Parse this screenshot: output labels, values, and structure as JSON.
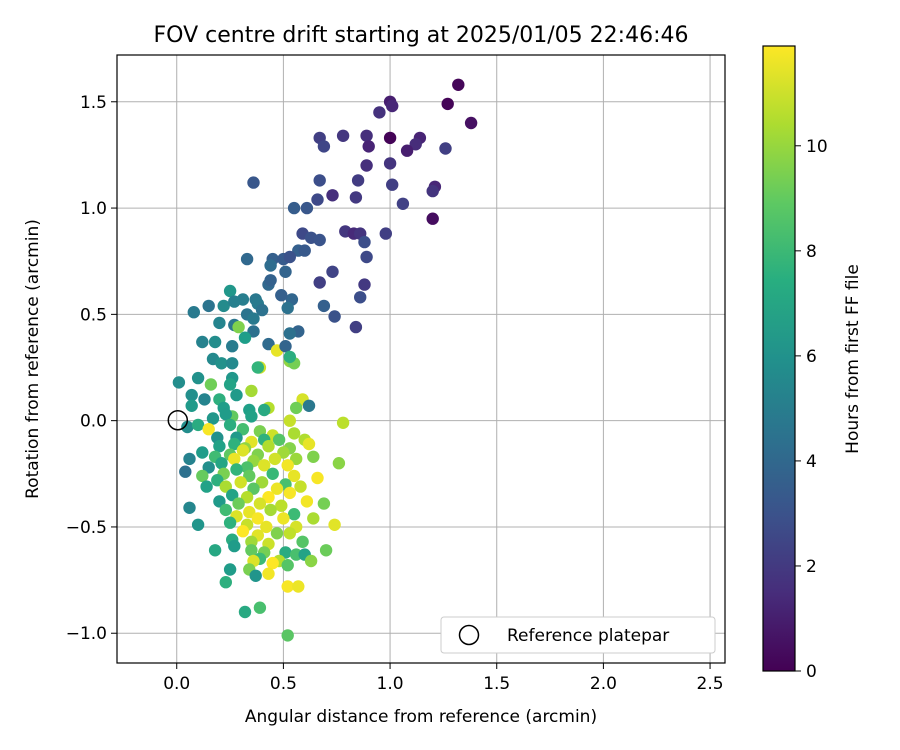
{
  "chart_data": {
    "type": "scatter",
    "title": "FOV centre drift starting at 2025/01/05 22:46:46",
    "xlabel": "Angular distance from reference (arcmin)",
    "ylabel": "Rotation from reference (arcmin)",
    "xlim": [
      -0.28,
      2.57
    ],
    "ylim": [
      -1.14,
      1.72
    ],
    "xticks": [
      "0.0",
      "0.5",
      "1.0",
      "1.5",
      "2.0",
      "2.5"
    ],
    "yticks": [
      "−1.0",
      "−0.5",
      "0.0",
      "0.5",
      "1.0",
      "1.5"
    ],
    "grid": true,
    "colorbar": {
      "label": "Hours from first FF file",
      "colormap": "viridis",
      "range": [
        0,
        11.9
      ],
      "ticks": [
        "0",
        "2",
        "4",
        "6",
        "8",
        "10"
      ]
    },
    "reference_point": {
      "x": 0.0,
      "y": 0.0
    },
    "legend": {
      "placement": "lower right",
      "entries": [
        "Reference platepar"
      ]
    },
    "points": [
      {
        "x": 1.32,
        "y": 1.58,
        "t": 0.2
      },
      {
        "x": 1.27,
        "y": 1.49,
        "t": 0.1
      },
      {
        "x": 1.38,
        "y": 1.4,
        "t": 0.5
      },
      {
        "x": 1.0,
        "y": 1.5,
        "t": 1.0
      },
      {
        "x": 1.01,
        "y": 1.48,
        "t": 1.3
      },
      {
        "x": 0.95,
        "y": 1.45,
        "t": 1.7
      },
      {
        "x": 0.78,
        "y": 1.34,
        "t": 1.9
      },
      {
        "x": 0.67,
        "y": 1.33,
        "t": 2.2
      },
      {
        "x": 0.89,
        "y": 1.34,
        "t": 1.6
      },
      {
        "x": 1.0,
        "y": 1.33,
        "t": 0.1
      },
      {
        "x": 1.14,
        "y": 1.33,
        "t": 1.2
      },
      {
        "x": 1.26,
        "y": 1.28,
        "t": 2.2
      },
      {
        "x": 0.9,
        "y": 1.29,
        "t": 1.2
      },
      {
        "x": 0.69,
        "y": 1.29,
        "t": 2.5
      },
      {
        "x": 1.12,
        "y": 1.3,
        "t": 1.5
      },
      {
        "x": 1.08,
        "y": 1.27,
        "t": 1.0
      },
      {
        "x": 1.0,
        "y": 1.21,
        "t": 1.8
      },
      {
        "x": 0.89,
        "y": 1.2,
        "t": 1.6
      },
      {
        "x": 0.36,
        "y": 1.12,
        "t": 3.2
      },
      {
        "x": 0.67,
        "y": 1.13,
        "t": 2.8
      },
      {
        "x": 0.85,
        "y": 1.13,
        "t": 2.1
      },
      {
        "x": 1.21,
        "y": 1.1,
        "t": 1.3
      },
      {
        "x": 1.2,
        "y": 1.08,
        "t": 1.8
      },
      {
        "x": 1.01,
        "y": 1.11,
        "t": 2.2
      },
      {
        "x": 0.73,
        "y": 1.06,
        "t": 1.6
      },
      {
        "x": 0.84,
        "y": 1.05,
        "t": 2.0
      },
      {
        "x": 0.66,
        "y": 1.04,
        "t": 2.6
      },
      {
        "x": 1.06,
        "y": 1.02,
        "t": 2.3
      },
      {
        "x": 0.55,
        "y": 1.0,
        "t": 3.5
      },
      {
        "x": 0.61,
        "y": 1.0,
        "t": 3.2
      },
      {
        "x": 1.2,
        "y": 0.95,
        "t": 0.4
      },
      {
        "x": 0.79,
        "y": 0.89,
        "t": 1.9
      },
      {
        "x": 0.83,
        "y": 0.88,
        "t": 1.4
      },
      {
        "x": 0.86,
        "y": 0.88,
        "t": 1.8
      },
      {
        "x": 0.98,
        "y": 0.88,
        "t": 2.2
      },
      {
        "x": 0.59,
        "y": 0.88,
        "t": 2.6
      },
      {
        "x": 0.63,
        "y": 0.86,
        "t": 3.0
      },
      {
        "x": 0.67,
        "y": 0.85,
        "t": 3.1
      },
      {
        "x": 0.88,
        "y": 0.84,
        "t": 2.8
      },
      {
        "x": 0.57,
        "y": 0.8,
        "t": 3.6
      },
      {
        "x": 0.6,
        "y": 0.8,
        "t": 3.3
      },
      {
        "x": 0.33,
        "y": 0.76,
        "t": 4.0
      },
      {
        "x": 0.45,
        "y": 0.76,
        "t": 3.6
      },
      {
        "x": 0.5,
        "y": 0.76,
        "t": 3.4
      },
      {
        "x": 0.53,
        "y": 0.77,
        "t": 3.0
      },
      {
        "x": 0.89,
        "y": 0.77,
        "t": 2.6
      },
      {
        "x": 0.44,
        "y": 0.73,
        "t": 4.2
      },
      {
        "x": 0.51,
        "y": 0.7,
        "t": 3.8
      },
      {
        "x": 0.73,
        "y": 0.7,
        "t": 2.4
      },
      {
        "x": 0.67,
        "y": 0.65,
        "t": 2.2
      },
      {
        "x": 0.88,
        "y": 0.64,
        "t": 2.0
      },
      {
        "x": 0.43,
        "y": 0.64,
        "t": 4.0
      },
      {
        "x": 0.44,
        "y": 0.66,
        "t": 3.7
      },
      {
        "x": 0.25,
        "y": 0.61,
        "t": 6.3
      },
      {
        "x": 0.31,
        "y": 0.57,
        "t": 5.1
      },
      {
        "x": 0.37,
        "y": 0.57,
        "t": 4.8
      },
      {
        "x": 0.38,
        "y": 0.55,
        "t": 4.9
      },
      {
        "x": 0.54,
        "y": 0.57,
        "t": 3.9
      },
      {
        "x": 0.49,
        "y": 0.59,
        "t": 3.6
      },
      {
        "x": 0.86,
        "y": 0.58,
        "t": 2.8
      },
      {
        "x": 0.15,
        "y": 0.54,
        "t": 4.6
      },
      {
        "x": 0.22,
        "y": 0.54,
        "t": 5.7
      },
      {
        "x": 0.27,
        "y": 0.56,
        "t": 5.2
      },
      {
        "x": 0.4,
        "y": 0.52,
        "t": 4.5
      },
      {
        "x": 0.52,
        "y": 0.53,
        "t": 4.5
      },
      {
        "x": 0.69,
        "y": 0.54,
        "t": 3.6
      },
      {
        "x": 0.08,
        "y": 0.51,
        "t": 4.9
      },
      {
        "x": 0.33,
        "y": 0.5,
        "t": 4.6
      },
      {
        "x": 0.74,
        "y": 0.49,
        "t": 3.0
      },
      {
        "x": 0.2,
        "y": 0.46,
        "t": 5.4
      },
      {
        "x": 0.36,
        "y": 0.48,
        "t": 4.9
      },
      {
        "x": 0.27,
        "y": 0.45,
        "t": 4.7
      },
      {
        "x": 0.29,
        "y": 0.44,
        "t": 9.6
      },
      {
        "x": 0.57,
        "y": 0.42,
        "t": 3.8
      },
      {
        "x": 0.53,
        "y": 0.41,
        "t": 4.4
      },
      {
        "x": 0.84,
        "y": 0.44,
        "t": 2.2
      },
      {
        "x": 0.36,
        "y": 0.42,
        "t": 4.4
      },
      {
        "x": 0.26,
        "y": 0.35,
        "t": 5.0
      },
      {
        "x": 0.12,
        "y": 0.37,
        "t": 5.3
      },
      {
        "x": 0.18,
        "y": 0.37,
        "t": 5.8
      },
      {
        "x": 0.32,
        "y": 0.39,
        "t": 6.6
      },
      {
        "x": 0.43,
        "y": 0.36,
        "t": 4.1
      },
      {
        "x": 0.47,
        "y": 0.33,
        "t": 11.5
      },
      {
        "x": 0.51,
        "y": 0.35,
        "t": 3.8
      },
      {
        "x": 0.17,
        "y": 0.29,
        "t": 5.6
      },
      {
        "x": 0.21,
        "y": 0.27,
        "t": 6.0
      },
      {
        "x": 0.26,
        "y": 0.27,
        "t": 5.6
      },
      {
        "x": 0.53,
        "y": 0.28,
        "t": 9.9
      },
      {
        "x": 0.55,
        "y": 0.27,
        "t": 9.4
      },
      {
        "x": 0.53,
        "y": 0.3,
        "t": 7.4
      },
      {
        "x": 0.39,
        "y": 0.25,
        "t": 11.0
      },
      {
        "x": 0.38,
        "y": 0.25,
        "t": 7.8
      },
      {
        "x": 0.1,
        "y": 0.2,
        "t": 6.0
      },
      {
        "x": 0.01,
        "y": 0.18,
        "t": 5.8
      },
      {
        "x": 0.16,
        "y": 0.17,
        "t": 9.3
      },
      {
        "x": 0.26,
        "y": 0.2,
        "t": 6.3
      },
      {
        "x": 0.25,
        "y": 0.17,
        "t": 6.9
      },
      {
        "x": 0.35,
        "y": 0.14,
        "t": 10.3
      },
      {
        "x": 0.07,
        "y": 0.12,
        "t": 5.9
      },
      {
        "x": 0.13,
        "y": 0.1,
        "t": 5.4
      },
      {
        "x": 0.2,
        "y": 0.1,
        "t": 7.5
      },
      {
        "x": 0.28,
        "y": 0.12,
        "t": 6.4
      },
      {
        "x": 0.59,
        "y": 0.1,
        "t": 11.2
      },
      {
        "x": 0.56,
        "y": 0.06,
        "t": 9.3
      },
      {
        "x": 0.62,
        "y": 0.07,
        "t": 4.8
      },
      {
        "x": 0.07,
        "y": 0.07,
        "t": 6.4
      },
      {
        "x": 0.22,
        "y": 0.06,
        "t": 6.6
      },
      {
        "x": 0.34,
        "y": 0.05,
        "t": 6.7
      },
      {
        "x": 0.43,
        "y": 0.06,
        "t": 10.6
      },
      {
        "x": 0.41,
        "y": 0.05,
        "t": 7.2
      },
      {
        "x": 0.17,
        "y": 0.01,
        "t": 6.3
      },
      {
        "x": 0.26,
        "y": 0.02,
        "t": 9.0
      },
      {
        "x": 0.23,
        "y": 0.03,
        "t": 6.5
      },
      {
        "x": 0.35,
        "y": 0.02,
        "t": 6.8
      },
      {
        "x": 0.53,
        "y": 0.0,
        "t": 10.9
      },
      {
        "x": 0.78,
        "y": -0.01,
        "t": 10.7
      },
      {
        "x": 0.05,
        "y": -0.03,
        "t": 5.8
      },
      {
        "x": 0.1,
        "y": -0.02,
        "t": 7.3
      },
      {
        "x": 0.15,
        "y": -0.04,
        "t": 11.8
      },
      {
        "x": 0.25,
        "y": -0.02,
        "t": 7.4
      },
      {
        "x": 0.31,
        "y": -0.04,
        "t": 8.3
      },
      {
        "x": 0.39,
        "y": -0.05,
        "t": 9.5
      },
      {
        "x": 0.45,
        "y": -0.07,
        "t": 11.0
      },
      {
        "x": 0.55,
        "y": -0.06,
        "t": 10.4
      },
      {
        "x": 0.19,
        "y": -0.08,
        "t": 6.0
      },
      {
        "x": 0.28,
        "y": -0.08,
        "t": 6.4
      },
      {
        "x": 0.35,
        "y": -0.1,
        "t": 11.4
      },
      {
        "x": 0.41,
        "y": -0.09,
        "t": 7.6
      },
      {
        "x": 0.48,
        "y": -0.09,
        "t": 8.7
      },
      {
        "x": 0.6,
        "y": -0.09,
        "t": 10.5
      },
      {
        "x": 0.2,
        "y": -0.12,
        "t": 6.8
      },
      {
        "x": 0.27,
        "y": -0.11,
        "t": 7.6
      },
      {
        "x": 0.32,
        "y": -0.13,
        "t": 9.9
      },
      {
        "x": 0.43,
        "y": -0.12,
        "t": 10.5
      },
      {
        "x": 0.53,
        "y": -0.13,
        "t": 9.7
      },
      {
        "x": 0.62,
        "y": -0.11,
        "t": 11.5
      },
      {
        "x": 0.12,
        "y": -0.15,
        "t": 6.5
      },
      {
        "x": 0.25,
        "y": -0.16,
        "t": 8.9
      },
      {
        "x": 0.31,
        "y": -0.14,
        "t": 11.3
      },
      {
        "x": 0.38,
        "y": -0.16,
        "t": 9.6
      },
      {
        "x": 0.5,
        "y": -0.15,
        "t": 10.2
      },
      {
        "x": 0.06,
        "y": -0.18,
        "t": 5.3
      },
      {
        "x": 0.18,
        "y": -0.17,
        "t": 8.2
      },
      {
        "x": 0.27,
        "y": -0.18,
        "t": 11.6
      },
      {
        "x": 0.36,
        "y": -0.19,
        "t": 10.0
      },
      {
        "x": 0.46,
        "y": -0.18,
        "t": 11.1
      },
      {
        "x": 0.56,
        "y": -0.18,
        "t": 10.1
      },
      {
        "x": 0.64,
        "y": -0.17,
        "t": 9.6
      },
      {
        "x": 0.21,
        "y": -0.2,
        "t": 7.0
      },
      {
        "x": 0.33,
        "y": -0.22,
        "t": 8.5
      },
      {
        "x": 0.41,
        "y": -0.21,
        "t": 11.3
      },
      {
        "x": 0.52,
        "y": -0.21,
        "t": 11.7
      },
      {
        "x": 0.15,
        "y": -0.22,
        "t": 5.9
      },
      {
        "x": 0.28,
        "y": -0.23,
        "t": 7.8
      },
      {
        "x": 0.04,
        "y": -0.24,
        "t": 4.4
      },
      {
        "x": 0.12,
        "y": -0.26,
        "t": 9.1
      },
      {
        "x": 0.22,
        "y": -0.25,
        "t": 9.5
      },
      {
        "x": 0.34,
        "y": -0.26,
        "t": 9.0
      },
      {
        "x": 0.45,
        "y": -0.25,
        "t": 8.0
      },
      {
        "x": 0.55,
        "y": -0.26,
        "t": 11.5
      },
      {
        "x": 0.66,
        "y": -0.27,
        "t": 11.8
      },
      {
        "x": 0.76,
        "y": -0.2,
        "t": 9.8
      },
      {
        "x": 0.19,
        "y": -0.28,
        "t": 7.5
      },
      {
        "x": 0.3,
        "y": -0.29,
        "t": 11.1
      },
      {
        "x": 0.4,
        "y": -0.29,
        "t": 10.2
      },
      {
        "x": 0.51,
        "y": -0.3,
        "t": 8.4
      },
      {
        "x": 0.23,
        "y": -0.31,
        "t": 10.4
      },
      {
        "x": 0.14,
        "y": -0.31,
        "t": 6.8
      },
      {
        "x": 0.36,
        "y": -0.32,
        "t": 8.8
      },
      {
        "x": 0.47,
        "y": -0.32,
        "t": 11.6
      },
      {
        "x": 0.58,
        "y": -0.31,
        "t": 10.9
      },
      {
        "x": 0.26,
        "y": -0.35,
        "t": 6.9
      },
      {
        "x": 0.33,
        "y": -0.36,
        "t": 10.6
      },
      {
        "x": 0.43,
        "y": -0.36,
        "t": 11.9
      },
      {
        "x": 0.53,
        "y": -0.34,
        "t": 11.8
      },
      {
        "x": 0.2,
        "y": -0.38,
        "t": 6.4
      },
      {
        "x": 0.29,
        "y": -0.39,
        "t": 9.2
      },
      {
        "x": 0.39,
        "y": -0.39,
        "t": 11.2
      },
      {
        "x": 0.49,
        "y": -0.4,
        "t": 10.7
      },
      {
        "x": 0.61,
        "y": -0.38,
        "t": 11.7
      },
      {
        "x": 0.69,
        "y": -0.39,
        "t": 9.4
      },
      {
        "x": 0.23,
        "y": -0.42,
        "t": 8.2
      },
      {
        "x": 0.34,
        "y": -0.43,
        "t": 11.5
      },
      {
        "x": 0.44,
        "y": -0.42,
        "t": 10.3
      },
      {
        "x": 0.55,
        "y": -0.44,
        "t": 8.1
      },
      {
        "x": 0.28,
        "y": -0.45,
        "t": 11.3
      },
      {
        "x": 0.38,
        "y": -0.46,
        "t": 11.8
      },
      {
        "x": 0.5,
        "y": -0.46,
        "t": 11.6
      },
      {
        "x": 0.64,
        "y": -0.46,
        "t": 10.4
      },
      {
        "x": 0.25,
        "y": -0.48,
        "t": 7.6
      },
      {
        "x": 0.33,
        "y": -0.49,
        "t": 10.9
      },
      {
        "x": 0.42,
        "y": -0.5,
        "t": 11.5
      },
      {
        "x": 0.56,
        "y": -0.5,
        "t": 11.2
      },
      {
        "x": 0.74,
        "y": -0.49,
        "t": 11.4
      },
      {
        "x": 0.1,
        "y": -0.49,
        "t": 6.2
      },
      {
        "x": 0.31,
        "y": -0.52,
        "t": 11.9
      },
      {
        "x": 0.38,
        "y": -0.54,
        "t": 11.4
      },
      {
        "x": 0.47,
        "y": -0.53,
        "t": 9.6
      },
      {
        "x": 0.53,
        "y": -0.53,
        "t": 10.8
      },
      {
        "x": 0.06,
        "y": -0.41,
        "t": 5.5
      },
      {
        "x": 0.26,
        "y": -0.56,
        "t": 7.3
      },
      {
        "x": 0.35,
        "y": -0.57,
        "t": 10.2
      },
      {
        "x": 0.43,
        "y": -0.58,
        "t": 11.0
      },
      {
        "x": 0.59,
        "y": -0.57,
        "t": 8.7
      },
      {
        "x": 0.27,
        "y": -0.59,
        "t": 6.5
      },
      {
        "x": 0.35,
        "y": -0.61,
        "t": 9.0
      },
      {
        "x": 0.41,
        "y": -0.62,
        "t": 9.4
      },
      {
        "x": 0.51,
        "y": -0.62,
        "t": 7.3
      },
      {
        "x": 0.56,
        "y": -0.63,
        "t": 8.4
      },
      {
        "x": 0.6,
        "y": -0.63,
        "t": 6.9
      },
      {
        "x": 0.7,
        "y": -0.61,
        "t": 9.2
      },
      {
        "x": 0.18,
        "y": -0.61,
        "t": 7.1
      },
      {
        "x": 0.39,
        "y": -0.65,
        "t": 8.1
      },
      {
        "x": 0.48,
        "y": -0.66,
        "t": 10.6
      },
      {
        "x": 0.63,
        "y": -0.66,
        "t": 9.8
      },
      {
        "x": 0.36,
        "y": -0.66,
        "t": 11.3
      },
      {
        "x": 0.45,
        "y": -0.67,
        "t": 11.9
      },
      {
        "x": 0.25,
        "y": -0.7,
        "t": 6.5
      },
      {
        "x": 0.34,
        "y": -0.7,
        "t": 9.5
      },
      {
        "x": 0.52,
        "y": -0.68,
        "t": 8.7
      },
      {
        "x": 0.43,
        "y": -0.72,
        "t": 11.7
      },
      {
        "x": 0.37,
        "y": -0.73,
        "t": 6.2
      },
      {
        "x": 0.23,
        "y": -0.76,
        "t": 7.5
      },
      {
        "x": 0.52,
        "y": -0.78,
        "t": 11.8
      },
      {
        "x": 0.57,
        "y": -0.78,
        "t": 11.6
      },
      {
        "x": 0.32,
        "y": -0.9,
        "t": 7.2
      },
      {
        "x": 0.39,
        "y": -0.88,
        "t": 8.4
      },
      {
        "x": 0.52,
        "y": -1.01,
        "t": 8.8
      }
    ]
  }
}
